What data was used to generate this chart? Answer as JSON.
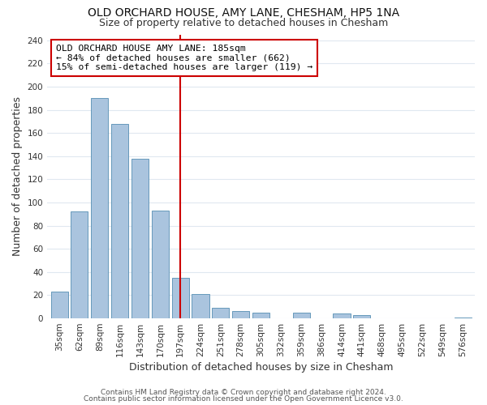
{
  "title": "OLD ORCHARD HOUSE, AMY LANE, CHESHAM, HP5 1NA",
  "subtitle": "Size of property relative to detached houses in Chesham",
  "xlabel": "Distribution of detached houses by size in Chesham",
  "ylabel": "Number of detached properties",
  "bar_labels": [
    "35sqm",
    "62sqm",
    "89sqm",
    "116sqm",
    "143sqm",
    "170sqm",
    "197sqm",
    "224sqm",
    "251sqm",
    "278sqm",
    "305sqm",
    "332sqm",
    "359sqm",
    "386sqm",
    "414sqm",
    "441sqm",
    "468sqm",
    "495sqm",
    "522sqm",
    "549sqm",
    "576sqm"
  ],
  "bar_values": [
    23,
    92,
    190,
    168,
    138,
    93,
    35,
    21,
    9,
    6,
    5,
    0,
    5,
    0,
    4,
    3,
    0,
    0,
    0,
    0,
    1
  ],
  "bar_color": "#aac4de",
  "bar_edge_color": "#6699bb",
  "vline_x": 6.0,
  "vline_color": "#cc0000",
  "annotation_line1": "OLD ORCHARD HOUSE AMY LANE: 185sqm",
  "annotation_line2": "← 84% of detached houses are smaller (662)",
  "annotation_line3": "15% of semi-detached houses are larger (119) →",
  "annotation_box_color": "#ffffff",
  "annotation_box_edge_color": "#cc0000",
  "ylim": [
    0,
    245
  ],
  "yticks": [
    0,
    20,
    40,
    60,
    80,
    100,
    120,
    140,
    160,
    180,
    200,
    220,
    240
  ],
  "footer1": "Contains HM Land Registry data © Crown copyright and database right 2024.",
  "footer2": "Contains public sector information licensed under the Open Government Licence v3.0.",
  "bg_color": "#ffffff",
  "plot_bg_color": "#ffffff",
  "grid_color": "#e0e8f0",
  "title_fontsize": 10,
  "subtitle_fontsize": 9,
  "axis_label_fontsize": 9,
  "tick_fontsize": 7.5,
  "footer_fontsize": 6.5
}
